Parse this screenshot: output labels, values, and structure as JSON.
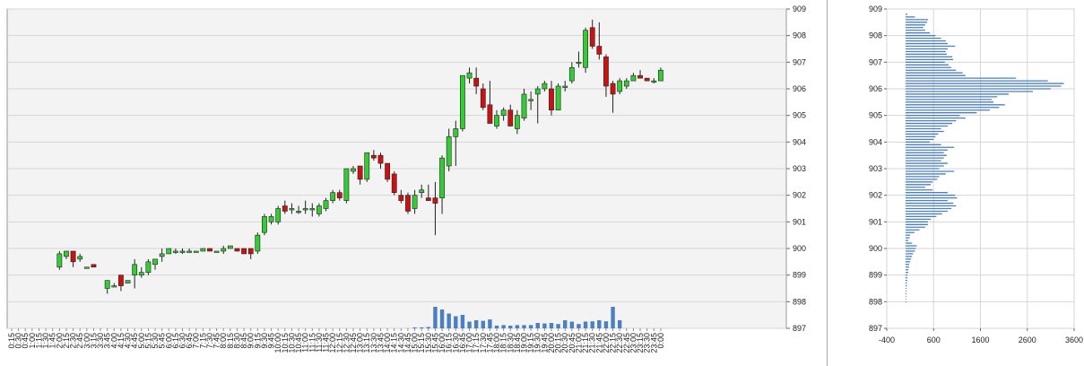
{
  "chart_data": [
    {
      "type": "candlestick",
      "grid": true,
      "ylim": [
        897,
        909
      ],
      "y_ticks": [
        "909",
        "908",
        "907",
        "906",
        "905",
        "904",
        "903",
        "902",
        "901",
        "900",
        "899",
        "898",
        "897"
      ],
      "x_ticks": [
        "0:15",
        "0:30",
        "0:45",
        "1:00",
        "1:15",
        "1:30",
        "1:45",
        "2:00",
        "2:15",
        "2:30",
        "2:45",
        "3:00",
        "3:15",
        "3:30",
        "3:45",
        "4:00",
        "4:15",
        "4:30",
        "4:45",
        "5:00",
        "5:15",
        "5:30",
        "5:45",
        "6:00",
        "6:15",
        "6:30",
        "6:45",
        "7:00",
        "7:15",
        "7:30",
        "7:45",
        "8:00",
        "8:15",
        "8:30",
        "8:45",
        "9:00",
        "9:15",
        "9:30",
        "9:45",
        "10:00",
        "10:15",
        "10:30",
        "10:45",
        "11:00",
        "11:15",
        "11:30",
        "11:45",
        "12:00",
        "12:15",
        "12:30",
        "12:45",
        "13:00",
        "13:15",
        "13:30",
        "13:45",
        "14:00",
        "14:15",
        "14:30",
        "14:45",
        "15:00",
        "15:15",
        "15:30",
        "15:45",
        "16:00",
        "16:15",
        "16:30",
        "16:45",
        "17:00",
        "17:15",
        "17:30",
        "17:45",
        "18:00",
        "18:15",
        "18:30",
        "18:45",
        "19:00",
        "19:15",
        "19:30",
        "19:45",
        "20:00",
        "20:15",
        "20:30",
        "20:45",
        "21:00",
        "21:15",
        "21:30",
        "21:45",
        "22:00",
        "22:15",
        "22:30",
        "22:45",
        "23:00",
        "23:15",
        "23:30",
        "23:45",
        "0:00"
      ],
      "up_color": "#33cc33",
      "down_color": "#cc1111",
      "volume_color": "#4a7fc1",
      "candles": [
        {
          "t": "2:00",
          "o": 899.3,
          "h": 899.9,
          "l": 899.2,
          "c": 899.8
        },
        {
          "t": "2:15",
          "o": 899.7,
          "h": 899.9,
          "l": 899.6,
          "c": 899.9
        },
        {
          "t": "2:30",
          "o": 899.9,
          "h": 899.9,
          "l": 899.3,
          "c": 899.5
        },
        {
          "t": "2:45",
          "o": 899.6,
          "h": 899.8,
          "l": 899.5,
          "c": 899.7
        },
        {
          "t": "3:00",
          "o": 899.3,
          "h": 899.3,
          "l": 899.3,
          "c": 899.3
        },
        {
          "t": "3:15",
          "o": 899.4,
          "h": 899.4,
          "l": 899.3,
          "c": 899.3
        },
        {
          "t": "3:45",
          "o": 898.5,
          "h": 898.8,
          "l": 898.3,
          "c": 898.8
        },
        {
          "t": "4:00",
          "o": 898.6,
          "h": 898.7,
          "l": 898.6,
          "c": 898.6
        },
        {
          "t": "4:15",
          "o": 899.0,
          "h": 899.0,
          "l": 898.4,
          "c": 898.6
        },
        {
          "t": "4:30",
          "o": 898.7,
          "h": 898.8,
          "l": 898.7,
          "c": 898.8
        },
        {
          "t": "4:45",
          "o": 899.0,
          "h": 899.6,
          "l": 898.5,
          "c": 899.4
        },
        {
          "t": "5:00",
          "o": 899.0,
          "h": 899.3,
          "l": 898.9,
          "c": 899.1
        },
        {
          "t": "5:15",
          "o": 899.1,
          "h": 899.6,
          "l": 899.0,
          "c": 899.5
        },
        {
          "t": "5:30",
          "o": 899.4,
          "h": 899.6,
          "l": 899.2,
          "c": 899.6
        },
        {
          "t": "5:45",
          "o": 899.7,
          "h": 900.0,
          "l": 899.5,
          "c": 899.8
        },
        {
          "t": "6:00",
          "o": 899.8,
          "h": 900.0,
          "l": 899.8,
          "c": 900.0
        },
        {
          "t": "6:15",
          "o": 899.9,
          "h": 900.0,
          "l": 899.8,
          "c": 899.9
        },
        {
          "t": "6:30",
          "o": 899.9,
          "h": 900.0,
          "l": 899.8,
          "c": 899.9
        },
        {
          "t": "6:45",
          "o": 899.9,
          "h": 900.0,
          "l": 899.9,
          "c": 899.9
        },
        {
          "t": "7:00",
          "o": 899.9,
          "h": 899.9,
          "l": 899.9,
          "c": 899.9
        },
        {
          "t": "7:15",
          "o": 899.9,
          "h": 900.0,
          "l": 899.9,
          "c": 900.0
        },
        {
          "t": "7:30",
          "o": 900.0,
          "h": 900.0,
          "l": 899.9,
          "c": 899.9
        },
        {
          "t": "7:45",
          "o": 899.9,
          "h": 899.9,
          "l": 899.9,
          "c": 899.9
        },
        {
          "t": "8:00",
          "o": 899.9,
          "h": 900.1,
          "l": 899.8,
          "c": 900.0
        },
        {
          "t": "8:15",
          "o": 900.0,
          "h": 900.1,
          "l": 900.0,
          "c": 900.1
        },
        {
          "t": "8:30",
          "o": 900.0,
          "h": 900.0,
          "l": 899.9,
          "c": 899.9
        },
        {
          "t": "8:45",
          "o": 900.0,
          "h": 900.0,
          "l": 899.8,
          "c": 899.8
        },
        {
          "t": "9:00",
          "o": 900.0,
          "h": 900.0,
          "l": 899.6,
          "c": 899.8
        },
        {
          "t": "9:15",
          "o": 899.9,
          "h": 900.6,
          "l": 899.8,
          "c": 900.5
        },
        {
          "t": "9:30",
          "o": 900.6,
          "h": 901.3,
          "l": 900.5,
          "c": 901.2
        },
        {
          "t": "9:45",
          "o": 901.0,
          "h": 901.3,
          "l": 900.9,
          "c": 901.2
        },
        {
          "t": "10:00",
          "o": 901.0,
          "h": 901.6,
          "l": 900.9,
          "c": 901.5
        },
        {
          "t": "10:15",
          "o": 901.6,
          "h": 901.8,
          "l": 901.3,
          "c": 901.4
        },
        {
          "t": "10:30",
          "o": 901.5,
          "h": 901.7,
          "l": 901.3,
          "c": 901.5
        },
        {
          "t": "10:45",
          "o": 901.4,
          "h": 901.6,
          "l": 901.3,
          "c": 901.4
        },
        {
          "t": "11:00",
          "o": 901.5,
          "h": 901.8,
          "l": 901.3,
          "c": 901.5
        },
        {
          "t": "11:15",
          "o": 901.5,
          "h": 901.7,
          "l": 901.2,
          "c": 901.5
        },
        {
          "t": "11:30",
          "o": 901.3,
          "h": 901.7,
          "l": 901.2,
          "c": 901.6
        },
        {
          "t": "11:45",
          "o": 901.5,
          "h": 901.9,
          "l": 901.4,
          "c": 901.8
        },
        {
          "t": "12:00",
          "o": 901.8,
          "h": 902.2,
          "l": 901.7,
          "c": 902.1
        },
        {
          "t": "12:15",
          "o": 902.1,
          "h": 902.2,
          "l": 901.8,
          "c": 901.9
        },
        {
          "t": "12:30",
          "o": 901.8,
          "h": 903.0,
          "l": 901.7,
          "c": 903.0
        },
        {
          "t": "12:45",
          "o": 902.9,
          "h": 903.1,
          "l": 902.8,
          "c": 903.0
        },
        {
          "t": "13:00",
          "o": 903.1,
          "h": 903.1,
          "l": 902.4,
          "c": 902.6
        },
        {
          "t": "13:15",
          "o": 902.6,
          "h": 903.6,
          "l": 902.5,
          "c": 903.6
        },
        {
          "t": "13:30",
          "o": 903.5,
          "h": 903.7,
          "l": 903.3,
          "c": 903.4
        },
        {
          "t": "13:45",
          "o": 903.5,
          "h": 903.6,
          "l": 903.0,
          "c": 903.2
        },
        {
          "t": "14:00",
          "o": 903.2,
          "h": 903.2,
          "l": 902.5,
          "c": 902.6
        },
        {
          "t": "14:15",
          "o": 902.8,
          "h": 902.9,
          "l": 902.0,
          "c": 902.1
        },
        {
          "t": "14:30",
          "o": 902.0,
          "h": 902.2,
          "l": 901.7,
          "c": 901.8
        },
        {
          "t": "14:45",
          "o": 902.0,
          "h": 902.1,
          "l": 901.3,
          "c": 901.4
        },
        {
          "t": "15:00",
          "o": 901.5,
          "h": 902.2,
          "l": 901.3,
          "c": 902.0
        },
        {
          "t": "15:15",
          "o": 902.1,
          "h": 902.4,
          "l": 901.9,
          "c": 902.2
        },
        {
          "t": "15:30",
          "o": 901.9,
          "h": 902.4,
          "l": 901.8,
          "c": 901.8
        },
        {
          "t": "15:45",
          "o": 901.9,
          "h": 902.5,
          "l": 900.5,
          "c": 901.7
        },
        {
          "t": "16:00",
          "o": 901.9,
          "h": 903.5,
          "l": 901.3,
          "c": 903.4
        },
        {
          "t": "16:15",
          "o": 903.1,
          "h": 904.5,
          "l": 902.9,
          "c": 904.2
        },
        {
          "t": "16:30",
          "o": 904.2,
          "h": 904.8,
          "l": 903.1,
          "c": 904.5
        },
        {
          "t": "16:45",
          "o": 904.5,
          "h": 906.5,
          "l": 904.4,
          "c": 906.5
        },
        {
          "t": "17:00",
          "o": 906.4,
          "h": 906.8,
          "l": 906.2,
          "c": 906.6
        },
        {
          "t": "17:15",
          "o": 906.4,
          "h": 906.8,
          "l": 905.8,
          "c": 906.1
        },
        {
          "t": "17:30",
          "o": 906.0,
          "h": 906.2,
          "l": 905.2,
          "c": 905.3
        },
        {
          "t": "17:45",
          "o": 905.4,
          "h": 906.3,
          "l": 904.7,
          "c": 904.7
        },
        {
          "t": "18:00",
          "o": 904.6,
          "h": 905.2,
          "l": 904.5,
          "c": 905.0
        },
        {
          "t": "18:15",
          "o": 905.0,
          "h": 905.3,
          "l": 904.8,
          "c": 905.2
        },
        {
          "t": "18:30",
          "o": 905.2,
          "h": 905.4,
          "l": 904.6,
          "c": 904.6
        },
        {
          "t": "18:45",
          "o": 904.5,
          "h": 905.2,
          "l": 904.3,
          "c": 905.0
        },
        {
          "t": "19:00",
          "o": 904.9,
          "h": 906.0,
          "l": 904.8,
          "c": 905.8
        },
        {
          "t": "19:15",
          "o": 905.6,
          "h": 905.9,
          "l": 905.2,
          "c": 905.6
        },
        {
          "t": "19:30",
          "o": 905.8,
          "h": 906.1,
          "l": 904.7,
          "c": 906.0
        },
        {
          "t": "19:45",
          "o": 906.0,
          "h": 906.3,
          "l": 905.9,
          "c": 906.2
        },
        {
          "t": "20:00",
          "o": 906.0,
          "h": 906.3,
          "l": 905.0,
          "c": 905.2
        },
        {
          "t": "20:15",
          "o": 905.2,
          "h": 906.2,
          "l": 905.2,
          "c": 906.1
        },
        {
          "t": "20:30",
          "o": 906.1,
          "h": 906.3,
          "l": 905.9,
          "c": 906.1
        },
        {
          "t": "20:45",
          "o": 906.3,
          "h": 907.0,
          "l": 906.2,
          "c": 906.8
        },
        {
          "t": "21:00",
          "o": 907.0,
          "h": 907.4,
          "l": 906.8,
          "c": 907.0
        },
        {
          "t": "21:15",
          "o": 906.8,
          "h": 908.3,
          "l": 906.6,
          "c": 908.2
        },
        {
          "t": "21:30",
          "o": 908.3,
          "h": 908.6,
          "l": 907.5,
          "c": 907.6
        },
        {
          "t": "21:45",
          "o": 907.6,
          "h": 908.5,
          "l": 907.1,
          "c": 907.3
        },
        {
          "t": "22:00",
          "o": 907.2,
          "h": 907.3,
          "l": 905.7,
          "c": 906.1
        },
        {
          "t": "22:15",
          "o": 906.2,
          "h": 906.3,
          "l": 905.1,
          "c": 905.8
        },
        {
          "t": "22:30",
          "o": 905.9,
          "h": 906.4,
          "l": 905.8,
          "c": 906.3
        },
        {
          "t": "22:45",
          "o": 906.1,
          "h": 906.4,
          "l": 906.0,
          "c": 906.3
        },
        {
          "t": "23:00",
          "o": 906.3,
          "h": 906.6,
          "l": 906.3,
          "c": 906.5
        },
        {
          "t": "23:15",
          "o": 906.5,
          "h": 906.7,
          "l": 906.4,
          "c": 906.4
        },
        {
          "t": "23:30",
          "o": 906.4,
          "h": 906.4,
          "l": 906.3,
          "c": 906.3
        },
        {
          "t": "23:45",
          "o": 906.3,
          "h": 906.4,
          "l": 906.2,
          "c": 906.3
        },
        {
          "t": "0:00",
          "o": 906.3,
          "h": 906.8,
          "l": 906.3,
          "c": 906.7
        }
      ],
      "volume": [
        {
          "t": "15:00",
          "v": 0.03
        },
        {
          "t": "15:15",
          "v": 0.03
        },
        {
          "t": "15:30",
          "v": 0.05
        },
        {
          "t": "15:45",
          "v": 0.8
        },
        {
          "t": "16:00",
          "v": 0.7
        },
        {
          "t": "16:15",
          "v": 0.55
        },
        {
          "t": "16:30",
          "v": 0.45
        },
        {
          "t": "16:45",
          "v": 0.5
        },
        {
          "t": "17:00",
          "v": 0.25
        },
        {
          "t": "17:15",
          "v": 0.3
        },
        {
          "t": "17:30",
          "v": 0.28
        },
        {
          "t": "17:45",
          "v": 0.33
        },
        {
          "t": "18:00",
          "v": 0.1
        },
        {
          "t": "18:15",
          "v": 0.12
        },
        {
          "t": "18:30",
          "v": 0.1
        },
        {
          "t": "18:45",
          "v": 0.12
        },
        {
          "t": "19:00",
          "v": 0.12
        },
        {
          "t": "19:15",
          "v": 0.12
        },
        {
          "t": "19:30",
          "v": 0.2
        },
        {
          "t": "19:45",
          "v": 0.18
        },
        {
          "t": "20:00",
          "v": 0.2
        },
        {
          "t": "20:15",
          "v": 0.16
        },
        {
          "t": "20:30",
          "v": 0.3
        },
        {
          "t": "20:45",
          "v": 0.25
        },
        {
          "t": "21:00",
          "v": 0.16
        },
        {
          "t": "21:15",
          "v": 0.25
        },
        {
          "t": "21:30",
          "v": 0.26
        },
        {
          "t": "21:45",
          "v": 0.3
        },
        {
          "t": "22:00",
          "v": 0.26
        },
        {
          "t": "22:15",
          "v": 0.8
        },
        {
          "t": "22:30",
          "v": 0.3
        }
      ]
    },
    {
      "type": "bar",
      "orientation": "horizontal",
      "grid": true,
      "ylim": [
        897,
        909
      ],
      "y_ticks": [
        "909",
        "908",
        "907",
        "906",
        "905",
        "904",
        "903",
        "902",
        "901",
        "900",
        "899",
        "898",
        "897"
      ],
      "xlim": [
        -400,
        3600
      ],
      "x_ticks": [
        "-400",
        "600",
        "1600",
        "2600",
        "3600"
      ],
      "bar_color": "#4a7fc1",
      "levels": [
        897.0,
        897.1,
        897.2,
        897.3,
        897.4,
        897.5,
        897.6,
        897.7,
        897.8,
        897.9,
        898.0,
        898.1,
        898.2,
        898.3,
        898.4,
        898.5,
        898.6,
        898.7,
        898.8,
        898.9,
        899.0,
        899.1,
        899.2,
        899.3,
        899.4,
        899.5,
        899.6,
        899.7,
        899.8,
        899.9,
        900.0,
        900.1,
        900.2,
        900.3,
        900.4,
        900.5,
        900.6,
        900.7,
        900.8,
        900.9,
        901.0,
        901.1,
        901.2,
        901.3,
        901.4,
        901.5,
        901.6,
        901.7,
        901.8,
        901.9,
        902.0,
        902.1,
        902.2,
        902.3,
        902.4,
        902.5,
        902.6,
        902.7,
        902.8,
        902.9,
        903.0,
        903.1,
        903.2,
        903.3,
        903.4,
        903.5,
        903.6,
        903.7,
        903.8,
        903.9,
        904.0,
        904.1,
        904.2,
        904.3,
        904.4,
        904.5,
        904.6,
        904.7,
        904.8,
        904.9,
        905.0,
        905.1,
        905.2,
        905.3,
        905.4,
        905.5,
        905.6,
        905.7,
        905.8,
        905.9,
        906.0,
        906.1,
        906.2,
        906.3,
        906.4,
        906.5,
        906.6,
        906.7,
        906.8,
        906.9,
        907.0,
        907.1,
        907.2,
        907.3,
        907.4,
        907.5,
        907.6,
        907.7,
        907.8,
        907.9,
        908.0,
        908.1,
        908.2,
        908.3,
        908.4,
        908.5,
        908.6,
        908.7,
        908.8,
        908.9,
        909.0
      ],
      "values": [
        0,
        0,
        0,
        0,
        0,
        0,
        0,
        0,
        0,
        0,
        15,
        15,
        15,
        20,
        20,
        20,
        30,
        30,
        40,
        40,
        40,
        60,
        60,
        80,
        80,
        100,
        120,
        140,
        160,
        200,
        220,
        240,
        140,
        60,
        90,
        100,
        190,
        300,
        420,
        480,
        480,
        540,
        660,
        780,
        900,
        980,
        1080,
        1020,
        900,
        1100,
        1060,
        900,
        580,
        420,
        540,
        580,
        680,
        720,
        860,
        1040,
        720,
        820,
        900,
        760,
        820,
        880,
        820,
        900,
        1040,
        760,
        520,
        600,
        640,
        700,
        820,
        760,
        900,
        1000,
        1080,
        1280,
        1160,
        1520,
        1800,
        2000,
        2120,
        1880,
        1840,
        1960,
        2200,
        2720,
        3100,
        3320,
        3380,
        3040,
        2360,
        1280,
        1220,
        1080,
        980,
        920,
        840,
        1020,
        1000,
        880,
        860,
        900,
        1060,
        900,
        860,
        760,
        640,
        520,
        420,
        380,
        420,
        460,
        480,
        200,
        40,
        0,
        0
      ]
    }
  ]
}
